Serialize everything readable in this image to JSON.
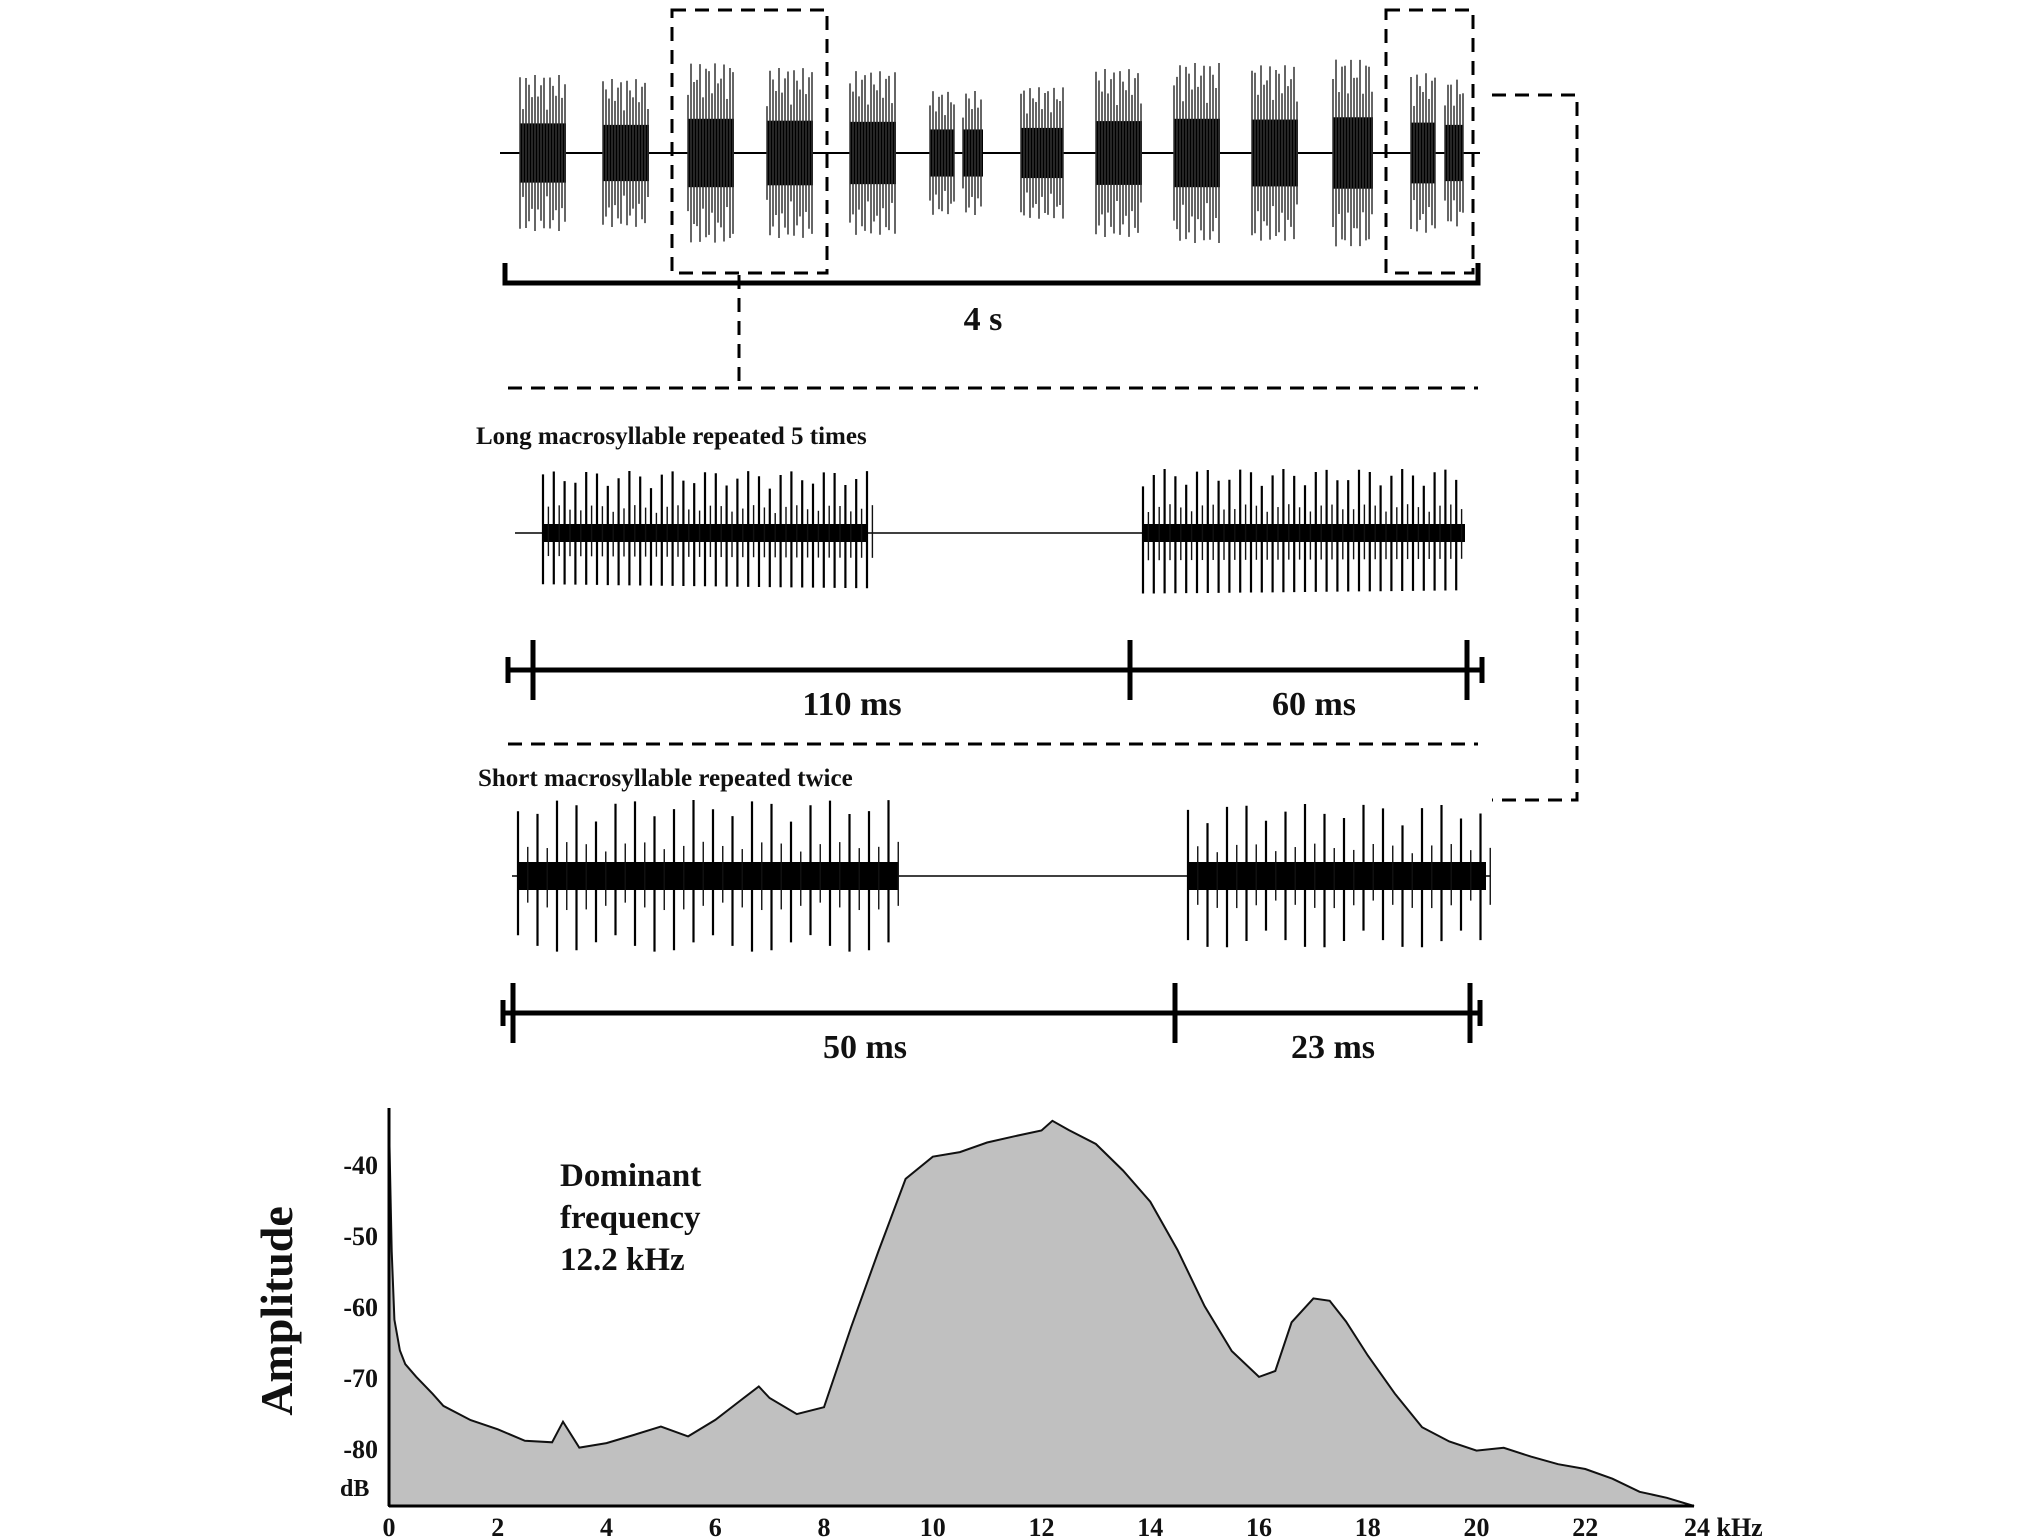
{
  "overview": {
    "scale_label": "4 s",
    "burst_count": 14
  },
  "long_panel": {
    "title": "Long macrosyllable repeated 5 times",
    "segment_labels": [
      "110 ms",
      "60 ms"
    ],
    "durations_ms": [
      110,
      60
    ]
  },
  "short_panel": {
    "title": "Short macrosyllable repeated twice",
    "segment_labels": [
      "50 ms",
      "23 ms"
    ],
    "durations_ms": [
      50,
      23
    ]
  },
  "spectrum": {
    "annotation": [
      "Dominant",
      "frequency",
      "12.2 kHz"
    ],
    "dominant_frequency_khz": 12.2,
    "ylabel": "Amplitude",
    "y_unit": "dB",
    "x_unit": "kHz",
    "fill_color": "#c0c0c0"
  },
  "chart_data": {
    "type": "area",
    "xlabel": "kHz",
    "ylabel": "Amplitude",
    "x_ticks": [
      "0",
      "2",
      "4",
      "6",
      "8",
      "10",
      "12",
      "14",
      "16",
      "18",
      "20",
      "22",
      "24 kHz"
    ],
    "y_ticks": [
      "-40",
      "-50",
      "-60",
      "-70",
      "-80"
    ],
    "xlim": [
      0,
      24
    ],
    "ylim": [
      -88,
      -32
    ],
    "series": [
      {
        "x": [
          0.0,
          0.05,
          0.1,
          0.2,
          0.3,
          0.5,
          0.8,
          1.0,
          1.5,
          2.0,
          2.5,
          3.0,
          3.2,
          3.5,
          4.0,
          4.5,
          5.0,
          5.5,
          6.0,
          6.5,
          6.8,
          7.0,
          7.5,
          8.0,
          8.5,
          9.0,
          9.5,
          10.0,
          10.5,
          11.0,
          11.5,
          12.0,
          12.2,
          12.5,
          13.0,
          13.5,
          14.0,
          14.5,
          15.0,
          15.5,
          16.0,
          16.3,
          16.6,
          17.0,
          17.3,
          17.6,
          18.0,
          18.5,
          19.0,
          19.5,
          20.0,
          20.5,
          21.0,
          21.5,
          22.0,
          22.5,
          23.0,
          23.5,
          24.0
        ],
        "y": [
          -34,
          -52,
          -62,
          -66,
          -68,
          -70,
          -72,
          -74,
          -76,
          -77,
          -79,
          -79,
          -76,
          -80,
          -79,
          -78,
          -77,
          -78,
          -76,
          -73,
          -71,
          -73,
          -75,
          -74,
          -63,
          -52,
          -42,
          -39,
          -38,
          -37,
          -36,
          -35,
          -34,
          -35,
          -37,
          -41,
          -45,
          -52,
          -60,
          -66,
          -70,
          -69,
          -62,
          -59,
          -59,
          -62,
          -67,
          -72,
          -77,
          -79,
          -80,
          -80,
          -81,
          -82,
          -83,
          -84,
          -86,
          -87,
          -88
        ]
      }
    ]
  }
}
